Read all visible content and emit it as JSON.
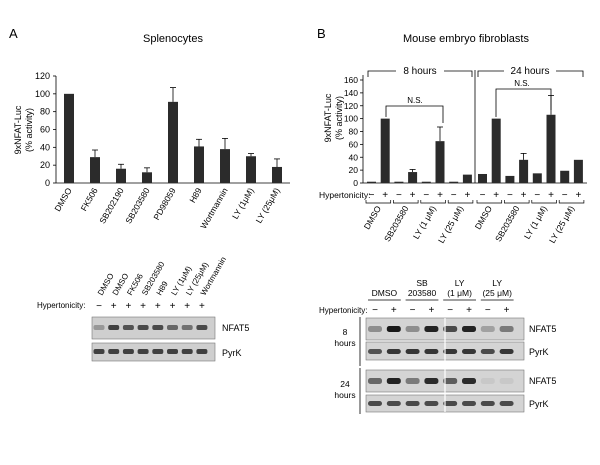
{
  "panel_a": {
    "letter": "A",
    "title": "Splenocytes",
    "blot": {
      "lane_labels": [
        "DMSO",
        "DMSO",
        "FK506",
        "SB203580",
        "H89",
        "LY (1μM)",
        "LY (25μM)",
        "Wortmannin"
      ],
      "hypertonicity_label": "Hypertonicity:",
      "signs": [
        "−",
        "+",
        "+",
        "+",
        "+",
        "+",
        "+",
        "+"
      ],
      "band_labels": [
        "NFAT5",
        "PyrK"
      ],
      "nfat5_intensity": [
        0.3,
        0.75,
        0.65,
        0.7,
        0.7,
        0.55,
        0.5,
        0.7
      ],
      "pyrk_intensity": [
        0.75,
        0.75,
        0.75,
        0.75,
        0.75,
        0.75,
        0.75,
        0.75
      ]
    }
  },
  "panel_b": {
    "letter": "B",
    "title": "Mouse embryo fibroblasts",
    "blot": {
      "group_labels": [
        {
          "lines": [
            "DMSO"
          ]
        },
        {
          "lines": [
            "SB",
            "203580"
          ]
        },
        {
          "lines": [
            "LY",
            "(1 μM)"
          ]
        },
        {
          "lines": [
            "LY",
            "(25 μM)"
          ]
        }
      ],
      "hypertonicity_label": "Hypertonicity:",
      "signs": [
        "−",
        "+",
        "−",
        "+",
        "−",
        "+",
        "−",
        "+"
      ],
      "blocks": [
        {
          "time_lines": [
            "8",
            "hours"
          ],
          "band_labels": [
            "NFAT5",
            "PyrK"
          ],
          "nfat5_intensity": [
            0.35,
            0.95,
            0.35,
            0.9,
            0.7,
            0.9,
            0.25,
            0.45
          ],
          "pyrk_intensity": [
            0.65,
            0.8,
            0.8,
            0.8,
            0.8,
            0.8,
            0.7,
            0.8
          ]
        },
        {
          "time_lines": [
            "24",
            "hours"
          ],
          "band_labels": [
            "NFAT5",
            "PyrK"
          ],
          "nfat5_intensity": [
            0.55,
            0.9,
            0.45,
            0.85,
            0.6,
            0.85,
            0.05,
            0.05
          ],
          "pyrk_intensity": [
            0.7,
            0.7,
            0.7,
            0.7,
            0.7,
            0.7,
            0.7,
            0.7
          ]
        }
      ]
    }
  },
  "chart_data": [
    {
      "type": "bar",
      "title": "Splenocytes",
      "ylabel_lines": [
        "9xNFAT-Luc",
        "(% activity)"
      ],
      "xlabel": "",
      "ylim": [
        0,
        120
      ],
      "yticks": [
        0,
        20,
        40,
        60,
        80,
        100,
        120
      ],
      "categories": [
        "DMSO",
        "FK506",
        "SB202190",
        "SB203580",
        "PD98059",
        "H89",
        "Wortmannin",
        "LY (1μM)",
        "LY (25μM)"
      ],
      "values": [
        100,
        29,
        16,
        12,
        91,
        41,
        38,
        30,
        18
      ],
      "errors": [
        0,
        8,
        5,
        5,
        16,
        8,
        12,
        3,
        9
      ],
      "grid": false,
      "bar_color": "#2b2b2b"
    },
    {
      "type": "bar",
      "title": "Mouse embryo fibroblasts",
      "ylabel_lines": [
        "9xNFAT-Luc",
        "(% activity)"
      ],
      "xlabel": "",
      "ylim": [
        0,
        160
      ],
      "yticks": [
        0,
        20,
        40,
        60,
        80,
        100,
        120,
        140,
        160
      ],
      "periods": [
        "8 hours",
        "24 hours"
      ],
      "significance_label": "N.S.",
      "hypertonicity_label": "Hypertonicity:",
      "signs": [
        "−",
        "+",
        "−",
        "+",
        "−",
        "+",
        "−",
        "+"
      ],
      "groups": [
        "DMSO",
        "SB203580",
        "LY (1 μM)",
        "LY (25 μM)"
      ],
      "values_8h": [
        2,
        100,
        2,
        17,
        2,
        65,
        2,
        13
      ],
      "errors_8h": [
        0,
        0,
        0,
        4,
        0,
        22,
        0,
        0
      ],
      "values_24h": [
        14,
        100,
        11,
        36,
        15,
        106,
        19,
        36
      ],
      "errors_24h": [
        0,
        0,
        0,
        10,
        0,
        30,
        0,
        0
      ],
      "grid": false,
      "bar_color": "#2b2b2b"
    }
  ]
}
